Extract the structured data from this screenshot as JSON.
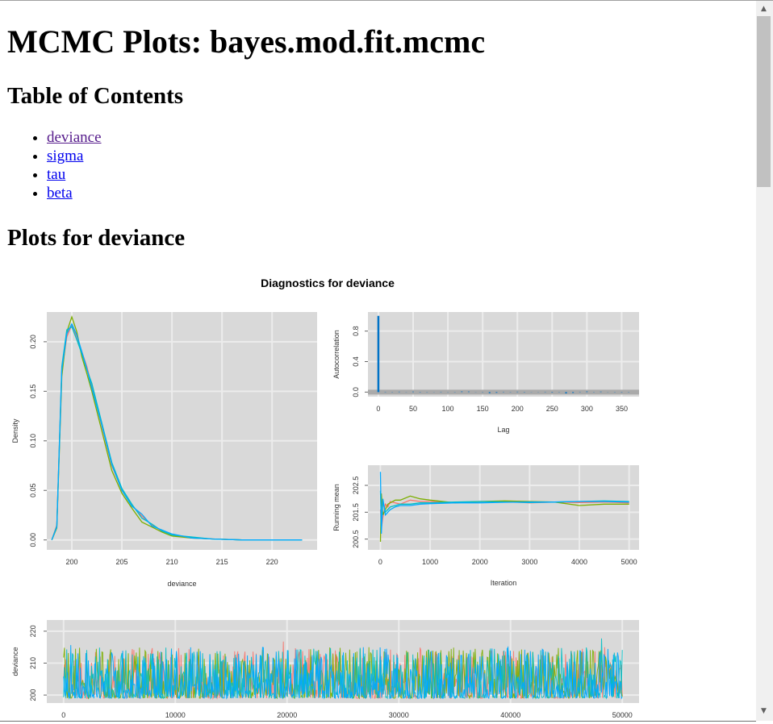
{
  "page": {
    "title": "MCMC Plots: bayes.mod.fit.mcmc",
    "toc_heading": "Table of Contents",
    "toc": [
      {
        "label": "deviance",
        "visited": true
      },
      {
        "label": "sigma",
        "visited": false
      },
      {
        "label": "tau",
        "visited": false
      },
      {
        "label": "beta",
        "visited": false
      }
    ],
    "section_heading": "Plots for deviance"
  },
  "figure": {
    "title": "Diagnostics for deviance",
    "series_colors": [
      "#f8766d",
      "#7cae00",
      "#00bfc4",
      "#00a9ff"
    ],
    "panel_background": "#d9d9d9"
  },
  "chart_data": [
    {
      "type": "line",
      "panel": "density",
      "xlabel": "deviance",
      "ylabel": "Density",
      "xlim": [
        197.5,
        224.5
      ],
      "ylim": [
        -0.01,
        0.23
      ],
      "xticks": [
        200,
        205,
        210,
        215,
        220
      ],
      "yticks": [
        0.0,
        0.05,
        0.1,
        0.15,
        0.2
      ],
      "ytick_labels": [
        "0.00",
        "0.05",
        "0.10",
        "0.15",
        "0.20"
      ],
      "series": [
        {
          "x": [
            198.0,
            198.5,
            199.0,
            199.5,
            200.0,
            200.5,
            201.0,
            201.5,
            202.0,
            203.0,
            204.0,
            205.0,
            206.0,
            207.0,
            208.0,
            209.0,
            210.0,
            212.0,
            214.0,
            217.0,
            223.0
          ],
          "values": [
            0.0,
            0.015,
            0.17,
            0.205,
            0.217,
            0.205,
            0.19,
            0.175,
            0.155,
            0.115,
            0.075,
            0.05,
            0.035,
            0.024,
            0.015,
            0.009,
            0.005,
            0.002,
            0.001,
            0.0,
            0.0
          ]
        },
        {
          "x": [
            198.0,
            198.5,
            199.0,
            199.5,
            200.0,
            200.5,
            201.0,
            201.5,
            202.0,
            203.0,
            204.0,
            205.0,
            206.0,
            207.0,
            208.0,
            209.0,
            210.0,
            212.0,
            214.0,
            217.0,
            223.0
          ],
          "values": [
            0.0,
            0.012,
            0.165,
            0.21,
            0.225,
            0.21,
            0.185,
            0.168,
            0.15,
            0.11,
            0.07,
            0.047,
            0.032,
            0.018,
            0.013,
            0.008,
            0.004,
            0.002,
            0.001,
            0.0,
            0.0
          ]
        },
        {
          "x": [
            198.0,
            198.5,
            199.0,
            199.5,
            200.0,
            200.5,
            201.0,
            201.5,
            202.0,
            203.0,
            204.0,
            205.0,
            206.0,
            207.0,
            208.0,
            209.0,
            210.0,
            212.0,
            214.0,
            217.0,
            223.0
          ],
          "values": [
            0.0,
            0.014,
            0.175,
            0.212,
            0.215,
            0.202,
            0.188,
            0.172,
            0.158,
            0.118,
            0.078,
            0.052,
            0.036,
            0.022,
            0.016,
            0.009,
            0.005,
            0.003,
            0.001,
            0.0,
            0.0
          ]
        },
        {
          "x": [
            198.0,
            198.5,
            199.0,
            199.5,
            200.0,
            200.5,
            201.0,
            201.5,
            202.0,
            203.0,
            204.0,
            205.0,
            206.0,
            207.0,
            208.0,
            209.0,
            210.0,
            212.0,
            214.0,
            217.0,
            223.0
          ],
          "values": [
            0.0,
            0.013,
            0.172,
            0.208,
            0.218,
            0.207,
            0.19,
            0.173,
            0.153,
            0.116,
            0.076,
            0.05,
            0.034,
            0.026,
            0.014,
            0.01,
            0.006,
            0.002,
            0.001,
            0.0,
            0.0
          ]
        }
      ]
    },
    {
      "type": "bar",
      "panel": "autocorrelation",
      "xlabel": "Lag",
      "ylabel": "Autocorrelation",
      "xlim": [
        -15,
        375
      ],
      "ylim": [
        -0.06,
        1.05
      ],
      "xticks": [
        0,
        50,
        100,
        150,
        200,
        250,
        300,
        350
      ],
      "yticks": [
        0.0,
        0.4,
        0.8
      ],
      "ytick_labels": [
        "0.0",
        "0.4",
        "0.8"
      ],
      "lags": [
        0,
        10,
        20,
        30,
        40,
        50,
        60,
        70,
        80,
        90,
        100,
        110,
        120,
        130,
        140,
        150,
        160,
        170,
        180,
        190,
        200,
        210,
        220,
        230,
        240,
        250,
        260,
        270,
        280,
        290,
        300,
        310,
        320,
        330,
        340,
        350,
        360
      ],
      "values": [
        1.0,
        0.004,
        -0.003,
        0.005,
        -0.002,
        0.006,
        -0.004,
        0.003,
        -0.002,
        0.004,
        0.002,
        -0.003,
        0.008,
        0.007,
        -0.002,
        0.003,
        -0.014,
        -0.009,
        0.004,
        -0.003,
        0.005,
        -0.004,
        0.002,
        -0.002,
        0.004,
        -0.006,
        0.003,
        -0.018,
        -0.011,
        0.004,
        0.008,
        -0.003,
        0.006,
        -0.002,
        0.003,
        -0.004,
        0.003
      ]
    },
    {
      "type": "line",
      "panel": "running-mean",
      "xlabel": "Iteration",
      "ylabel": "Running mean",
      "xlim": [
        -250,
        5200
      ],
      "ylim": [
        200.1,
        203.25
      ],
      "xticks": [
        0,
        1000,
        2000,
        3000,
        4000,
        5000
      ],
      "yticks": [
        200.5,
        201.5,
        202.5
      ],
      "ytick_labels": [
        "200.5",
        "201.5",
        "202.5"
      ],
      "series": [
        {
          "x": [
            1,
            20,
            50,
            100,
            150,
            200,
            300,
            400,
            600,
            800,
            1000,
            1500,
            2000,
            2500,
            3000,
            3500,
            4000,
            4500,
            5000
          ],
          "values": [
            201.6,
            200.9,
            201.3,
            201.8,
            201.7,
            201.9,
            201.85,
            201.8,
            201.95,
            201.9,
            201.9,
            201.85,
            201.9,
            201.9,
            201.85,
            201.88,
            201.86,
            201.88,
            201.85
          ]
        },
        {
          "x": [
            1,
            20,
            50,
            100,
            150,
            200,
            300,
            400,
            600,
            800,
            1000,
            1500,
            2000,
            2500,
            3000,
            3500,
            4000,
            4500,
            5000
          ],
          "values": [
            200.4,
            202.2,
            201.4,
            201.6,
            201.8,
            201.85,
            201.95,
            201.95,
            202.1,
            202.0,
            201.95,
            201.85,
            201.9,
            201.92,
            201.9,
            201.88,
            201.75,
            201.8,
            201.8
          ]
        },
        {
          "x": [
            1,
            20,
            50,
            100,
            150,
            200,
            300,
            400,
            600,
            800,
            1000,
            1500,
            2000,
            2500,
            3000,
            3500,
            4000,
            4500,
            5000
          ],
          "values": [
            202.3,
            201.0,
            201.9,
            201.5,
            201.6,
            201.7,
            201.75,
            201.8,
            201.8,
            201.85,
            201.85,
            201.88,
            201.9,
            201.88,
            201.86,
            201.88,
            201.9,
            201.92,
            201.9
          ]
        },
        {
          "x": [
            1,
            20,
            50,
            100,
            150,
            200,
            300,
            400,
            600,
            800,
            1000,
            1500,
            2000,
            2500,
            3000,
            3500,
            4000,
            4500,
            5000
          ],
          "values": [
            203.0,
            200.7,
            202.0,
            201.4,
            201.5,
            201.6,
            201.7,
            201.75,
            201.75,
            201.8,
            201.82,
            201.85,
            201.85,
            201.87,
            201.88,
            201.88,
            201.9,
            201.9,
            201.88
          ]
        }
      ]
    },
    {
      "type": "line",
      "panel": "trace",
      "xlabel": "",
      "ylabel": "deviance",
      "xlim": [
        -1500,
        51500
      ],
      "ylim": [
        197.5,
        223.5
      ],
      "xticks": [
        0,
        10000,
        20000,
        30000,
        40000,
        50000
      ],
      "yticks": [
        200,
        210,
        220
      ],
      "ytick_labels": [
        "200",
        "210",
        "220"
      ],
      "iterations": 50000,
      "chains": 4
    }
  ]
}
